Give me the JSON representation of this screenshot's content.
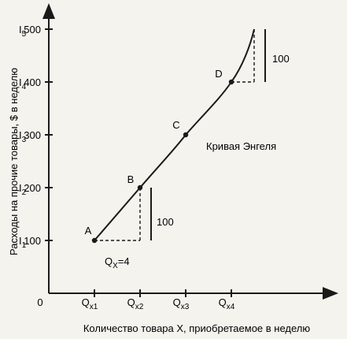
{
  "chart_data": {
    "type": "line",
    "title": "",
    "xlabel": "Количество товара X, приобретаемое в неделю",
    "ylabel": "Расходы на прочие товары, $ в неделю",
    "origin_label": "0",
    "y_ticks": [
      {
        "value": 100,
        "income": "I",
        "sub": "1"
      },
      {
        "value": 200,
        "income": "I",
        "sub": "2"
      },
      {
        "value": 300,
        "income": "I",
        "sub": "3"
      },
      {
        "value": 400,
        "income": "I",
        "sub": "4"
      },
      {
        "value": 500,
        "income": "I",
        "sub": "5"
      }
    ],
    "x_ticks": [
      {
        "main": "Q",
        "sub": "x1"
      },
      {
        "main": "Q",
        "sub": "x2"
      },
      {
        "main": "Q",
        "sub": "x3"
      },
      {
        "main": "Q",
        "sub": "x4"
      }
    ],
    "series": [
      {
        "name": "Кривая Энгеля",
        "points": [
          [
            1,
            100
          ],
          [
            2,
            200
          ],
          [
            3,
            300
          ],
          [
            4,
            400
          ],
          [
            4.5,
            500
          ]
        ]
      }
    ],
    "marked_points": [
      {
        "label": "A",
        "x": 1,
        "y": 100
      },
      {
        "label": "B",
        "x": 2,
        "y": 200
      },
      {
        "label": "C",
        "x": 3,
        "y": 300
      },
      {
        "label": "D",
        "x": 4,
        "y": 400
      }
    ],
    "annotations": {
      "step_low_dx": "Q",
      "step_low_dx_sub": "X",
      "step_low_dx_val": "=4",
      "step_low_dy": "100",
      "step_high_dy": "100"
    },
    "xlim": [
      0,
      5.1
    ],
    "ylim": [
      0,
      560
    ],
    "grid": false,
    "colors": {
      "line": "#1a1a1a",
      "background": "#f4f3ee"
    }
  }
}
